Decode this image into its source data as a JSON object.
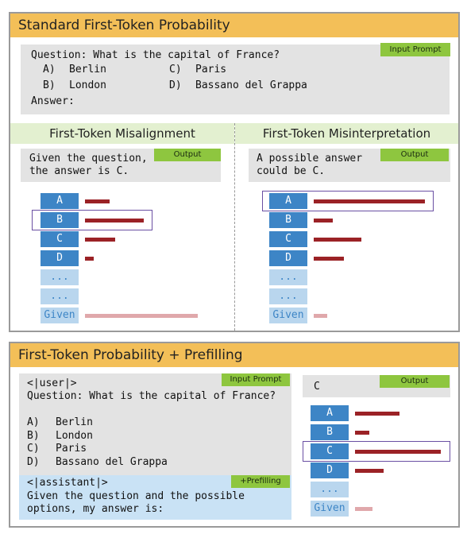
{
  "top": {
    "title": "Standard First-Token Probability",
    "prompt_tag": "Input Prompt",
    "question": "Question: What is the capital of France?",
    "options": [
      {
        "letter": "A)",
        "text": "Berlin"
      },
      {
        "letter": "B)",
        "text": "London"
      },
      {
        "letter": "C)",
        "text": "Paris"
      },
      {
        "letter": "D)",
        "text": "Bassano del Grappa"
      }
    ],
    "answer_label": "Answer:",
    "left": {
      "title": "First-Token Misalignment",
      "output_tag": "Output",
      "output_lines": [
        "Given the question,",
        "the answer is C."
      ],
      "tokens": [
        "A",
        "B",
        "C",
        "D",
        "...",
        "...",
        "Given"
      ],
      "probs": [
        0.22,
        0.52,
        0.27,
        0.08,
        0,
        0,
        1.0
      ],
      "highlight": "B"
    },
    "right": {
      "title": "First-Token Misinterpretation",
      "output_tag": "Output",
      "output_lines": [
        "A possible answer",
        "could be C."
      ],
      "tokens": [
        "A",
        "B",
        "C",
        "D",
        "...",
        "...",
        "Given"
      ],
      "probs": [
        1.0,
        0.17,
        0.43,
        0.27,
        0,
        0,
        0.12
      ],
      "highlight": "A"
    }
  },
  "bottom": {
    "title": "First-Token Probability + Prefilling",
    "prompt_tag": "Input Prompt",
    "user_token": "<|user|>",
    "question": "Question: What is the capital of France?",
    "options": [
      {
        "letter": "A)",
        "text": "Berlin"
      },
      {
        "letter": "B)",
        "text": "London"
      },
      {
        "letter": "C)",
        "text": "Paris"
      },
      {
        "letter": "D)",
        "text": "Bassano del Grappa"
      }
    ],
    "prefill_tag": "+Prefilling",
    "assistant_token": "<|assistant|>",
    "prefill_lines": [
      "Given the question and the possible",
      "options, my answer is:"
    ],
    "output_tag": "Output",
    "output_text": "C",
    "tokens": [
      "A",
      "B",
      "C",
      "D",
      "...",
      "Given"
    ],
    "probs": [
      0.52,
      0.17,
      1.0,
      0.33,
      0,
      0.2
    ],
    "highlight": "C"
  },
  "colors": {
    "header": "#f3bf58",
    "tag_green": "#8ec63f",
    "token_blue": "#3d85c6",
    "token_light": "#b9d6ee",
    "bar": "#9b2226",
    "bar_pale": "#e0a8ab",
    "highlight": "#6a4fa3"
  }
}
